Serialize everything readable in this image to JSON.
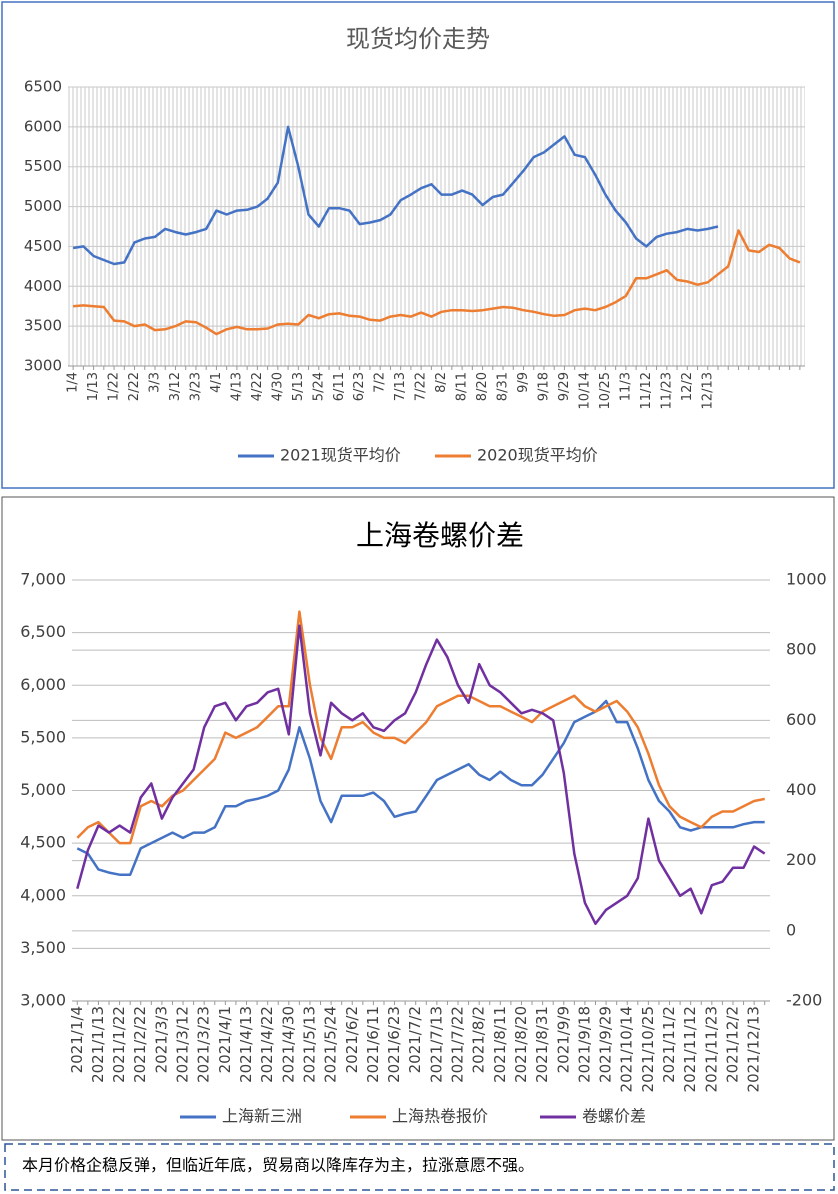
{
  "chart_data": [
    {
      "type": "line",
      "title": "现货均价走势",
      "categories": [
        "1/4",
        null,
        "1/13",
        null,
        "1/22",
        null,
        "2/22",
        null,
        "3/3",
        null,
        "3/12",
        null,
        "3/23",
        null,
        "4/1",
        null,
        "4/13",
        null,
        "4/22",
        null,
        "4/30",
        null,
        "5/13",
        null,
        "5/24",
        null,
        "6/11",
        null,
        "6/23",
        null,
        "7/2",
        null,
        "7/13",
        null,
        "7/22",
        null,
        "8/2",
        null,
        "8/11",
        null,
        "8/20",
        null,
        "8/31",
        null,
        "9/9",
        null,
        "9/18",
        null,
        "9/29",
        null,
        "10/14",
        null,
        "10/25",
        null,
        "11/3",
        null,
        "11/12",
        null,
        "11/23",
        null,
        "12/2",
        null,
        "12/13",
        null,
        null,
        null,
        null,
        null,
        null,
        null,
        null,
        null
      ],
      "series": [
        {
          "name": "2021现货平均价",
          "color": "#4472c4",
          "values": [
            4480,
            4500,
            4380,
            4330,
            4280,
            4300,
            4550,
            4600,
            4620,
            4720,
            4680,
            4650,
            4680,
            4720,
            4950,
            4900,
            4950,
            4960,
            5000,
            5100,
            5300,
            6000,
            5500,
            4900,
            4750,
            4980,
            4980,
            4950,
            4780,
            4800,
            4830,
            4900,
            5080,
            5150,
            5230,
            5280,
            5150,
            5150,
            5200,
            5150,
            5020,
            5120,
            5150,
            5300,
            5450,
            5620,
            5680,
            5780,
            5880,
            5650,
            5620,
            5400,
            5150,
            4950,
            4800,
            4600,
            4500,
            4620,
            4660,
            4680,
            4720,
            4700,
            4720,
            4750,
            null,
            null,
            null,
            null,
            null,
            null,
            null,
            null
          ]
        },
        {
          "name": "2020现货平均价",
          "color": "#ed7d31",
          "values": [
            3750,
            3760,
            3750,
            3740,
            3570,
            3560,
            3500,
            3520,
            3450,
            3460,
            3500,
            3560,
            3550,
            3480,
            3400,
            3460,
            3490,
            3460,
            3460,
            3470,
            3520,
            3530,
            3520,
            3640,
            3600,
            3650,
            3660,
            3630,
            3620,
            3580,
            3570,
            3620,
            3640,
            3620,
            3670,
            3620,
            3680,
            3700,
            3700,
            3690,
            3700,
            3720,
            3740,
            3730,
            3700,
            3680,
            3650,
            3630,
            3640,
            3700,
            3720,
            3700,
            3740,
            3800,
            3880,
            4100,
            4100,
            4150,
            4200,
            4080,
            4060,
            4020,
            4050,
            4150,
            4250,
            4700,
            4450,
            4430,
            4520,
            4480,
            4350,
            4300
          ]
        }
      ],
      "ylim": [
        3000,
        6500
      ],
      "yticks": [
        3000,
        3500,
        4000,
        4500,
        5000,
        5500,
        6000,
        6500
      ],
      "grid": true,
      "legend": "bottom"
    },
    {
      "type": "line",
      "title": "上海卷螺价差",
      "categories": [
        "2021/1/4",
        null,
        "2021/1/13",
        null,
        "2021/1/22",
        null,
        "2021/2/22",
        null,
        "2021/3/3",
        null,
        "2021/3/12",
        null,
        "2021/3/23",
        null,
        "2021/4/1",
        null,
        "2021/4/13",
        null,
        "2021/4/22",
        null,
        "2021/4/30",
        null,
        "2021/5/13",
        null,
        "2021/5/24",
        null,
        "2021/6/2",
        null,
        "2021/6/11",
        null,
        "2021/6/23",
        null,
        "2021/7/2",
        null,
        "2021/7/13",
        null,
        "2021/7/22",
        null,
        "2021/8/2",
        null,
        "2021/8/11",
        null,
        "2021/8/20",
        null,
        "2021/8/31",
        null,
        "2021/9/9",
        null,
        "2021/9/18",
        null,
        "2021/9/29",
        null,
        "2021/10/14",
        null,
        "2021/10/25",
        null,
        "2021/11/2",
        null,
        "2021/11/12",
        null,
        "2021/11/23",
        null,
        "2021/12/2",
        null,
        "2021/12/13",
        null
      ],
      "series": [
        {
          "name": "上海新三洲",
          "color": "#4472c4",
          "values": [
            4450,
            4400,
            4250,
            4220,
            4200,
            4200,
            4450,
            4500,
            4550,
            4600,
            4550,
            4600,
            4600,
            4650,
            4850,
            4850,
            4900,
            4920,
            4950,
            5000,
            5200,
            5600,
            5300,
            4900,
            4700,
            4950,
            4950,
            4950,
            4980,
            4900,
            4750,
            4780,
            4800,
            4950,
            5100,
            5150,
            5200,
            5250,
            5150,
            5100,
            5180,
            5100,
            5050,
            5050,
            5150,
            5300,
            5450,
            5650,
            5700,
            5750,
            5850,
            5650,
            5650,
            5400,
            5100,
            4900,
            4800,
            4650,
            4620,
            4650,
            4650,
            4650,
            4650,
            4680,
            4700,
            4700
          ]
        },
        {
          "name": "上海热卷报价",
          "color": "#ed7d31",
          "values": [
            4550,
            4650,
            4700,
            4600,
            4500,
            4500,
            4850,
            4900,
            4850,
            4950,
            5000,
            5100,
            5200,
            5300,
            5550,
            5500,
            5550,
            5600,
            5700,
            5800,
            5800,
            6700,
            6000,
            5500,
            5300,
            5600,
            5600,
            5650,
            5550,
            5500,
            5500,
            5450,
            5550,
            5650,
            5800,
            5850,
            5900,
            5900,
            5850,
            5800,
            5800,
            5750,
            5700,
            5650,
            5750,
            5800,
            5850,
            5900,
            5800,
            5750,
            5800,
            5850,
            5750,
            5600,
            5350,
            5050,
            4850,
            4750,
            4700,
            4650,
            4750,
            4800,
            4800,
            4850,
            4900,
            4920
          ]
        },
        {
          "name": "卷螺价差",
          "color": "#7030a0",
          "axis": "y2",
          "values": [
            120,
            230,
            300,
            280,
            300,
            280,
            380,
            420,
            320,
            380,
            420,
            460,
            580,
            640,
            650,
            600,
            640,
            650,
            680,
            690,
            560,
            870,
            620,
            500,
            650,
            620,
            600,
            620,
            580,
            570,
            600,
            620,
            680,
            760,
            830,
            780,
            700,
            650,
            760,
            700,
            680,
            650,
            620,
            630,
            620,
            600,
            450,
            220,
            80,
            20,
            60,
            80,
            100,
            150,
            320,
            200,
            150,
            100,
            120,
            50,
            130,
            140,
            180,
            180,
            240,
            220
          ]
        }
      ],
      "ylim": [
        3000,
        7000
      ],
      "yticks": [
        {
          "value": 3000,
          "label": "3,000"
        },
        {
          "value": 3500,
          "label": "3,500"
        },
        {
          "value": 4000,
          "label": "4,000"
        },
        {
          "value": 4500,
          "label": "4,500"
        },
        {
          "value": 5000,
          "label": "5,000"
        },
        {
          "value": 5500,
          "label": "5,500"
        },
        {
          "value": 6000,
          "label": "6,000"
        },
        {
          "value": 6500,
          "label": "6,500"
        },
        {
          "value": 7000,
          "label": "7,000"
        }
      ],
      "y2lim": [
        -200,
        1000
      ],
      "y2ticks": [
        -200,
        0,
        200,
        400,
        600,
        800,
        1000
      ],
      "grid": true,
      "legend": "bottom"
    }
  ],
  "note": "本月价格企稳反弹，但临近年底，贸易商以降库存为主，拉涨意愿不强。"
}
